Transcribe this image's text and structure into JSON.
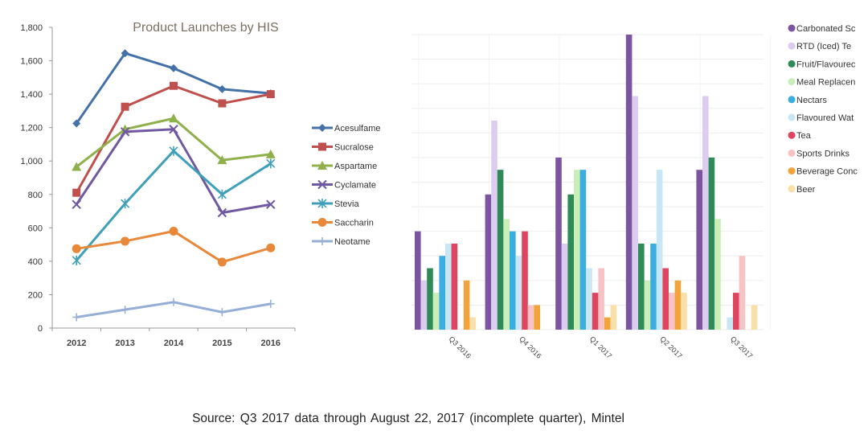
{
  "chart_data": [
    {
      "type": "line",
      "title": "Product Launches by HIS",
      "xlabel": "",
      "ylabel": "",
      "categories": [
        "2012",
        "2013",
        "2014",
        "2015",
        "2016"
      ],
      "ylim": [
        0,
        1800
      ],
      "yticks": [
        0,
        200,
        400,
        600,
        800,
        1000,
        1200,
        1400,
        1600,
        1800
      ],
      "ytick_labels": [
        "0",
        "200",
        "400",
        "600",
        "800",
        "1,000",
        "1,200",
        "1,400",
        "1,600",
        "1,800"
      ],
      "legend_position": "right",
      "grid": false,
      "series": [
        {
          "name": "Acesulfame",
          "color": "#4472a8",
          "marker": "diamond",
          "values": [
            1225,
            1645,
            1555,
            1430,
            1405
          ]
        },
        {
          "name": "Sucralose",
          "color": "#c0504d",
          "marker": "square",
          "values": [
            810,
            1325,
            1450,
            1345,
            1400
          ]
        },
        {
          "name": "Aspartame",
          "color": "#8fb04a",
          "marker": "triangle",
          "values": [
            965,
            1190,
            1255,
            1005,
            1040
          ]
        },
        {
          "name": "Cyclamate",
          "color": "#7059a0",
          "marker": "x",
          "values": [
            740,
            1175,
            1190,
            690,
            740
          ]
        },
        {
          "name": "Stevia",
          "color": "#3fa0b8",
          "marker": "star",
          "values": [
            405,
            745,
            1060,
            800,
            985
          ]
        },
        {
          "name": "Saccharin",
          "color": "#e8883a",
          "marker": "circle",
          "values": [
            475,
            520,
            580,
            395,
            480
          ]
        },
        {
          "name": "Neotame",
          "color": "#95aed6",
          "marker": "plus",
          "values": [
            65,
            110,
            155,
            95,
            145
          ]
        }
      ]
    },
    {
      "type": "bar",
      "title": "",
      "categories": [
        "Q3 2016",
        "Q4 2016",
        "Q1 2017",
        "Q2 2017",
        "Q3 2017"
      ],
      "ylim": [
        0,
        12
      ],
      "y_units": "gridline units (no axis labels shown)",
      "grid": true,
      "legend_position": "right",
      "series": [
        {
          "name": "Carbonated Sc",
          "color": "#7b559f",
          "values": [
            4,
            5.5,
            7,
            12,
            6.5
          ]
        },
        {
          "name": "RTD (Iced) Te",
          "color": "#dccdf0",
          "values": [
            2,
            8.5,
            3.5,
            9.5,
            9.5
          ]
        },
        {
          "name": "Fruit/Flavourec",
          "color": "#2e8a56",
          "values": [
            2.5,
            6.5,
            5.5,
            3.5,
            7
          ]
        },
        {
          "name": "Meal Replacen",
          "color": "#c9eeb8",
          "values": [
            1.5,
            4.5,
            6.5,
            2,
            4.5
          ]
        },
        {
          "name": "Nectars",
          "color": "#3aaee0",
          "values": [
            3,
            4,
            6.5,
            3.5,
            0
          ]
        },
        {
          "name": "Flavoured Wat",
          "color": "#c9e6f4",
          "values": [
            3.5,
            3,
            2.5,
            6.5,
            0.5
          ]
        },
        {
          "name": "Tea",
          "color": "#e0455f",
          "values": [
            3.5,
            4,
            1.5,
            2.5,
            1.5
          ]
        },
        {
          "name": "Sports Drinks",
          "color": "#f7c3c5",
          "values": [
            0,
            1,
            2.5,
            1.5,
            3
          ]
        },
        {
          "name": "Beverage Conc",
          "color": "#f2a43a",
          "values": [
            2,
            1,
            0.5,
            2,
            0
          ]
        },
        {
          "name": "Beer",
          "color": "#f8e0a8",
          "values": [
            0.5,
            0,
            1,
            1.5,
            1
          ]
        }
      ]
    }
  ],
  "source": "Source: Q3 2017 data through August 22, 2017 (incomplete quarter), Mintel"
}
